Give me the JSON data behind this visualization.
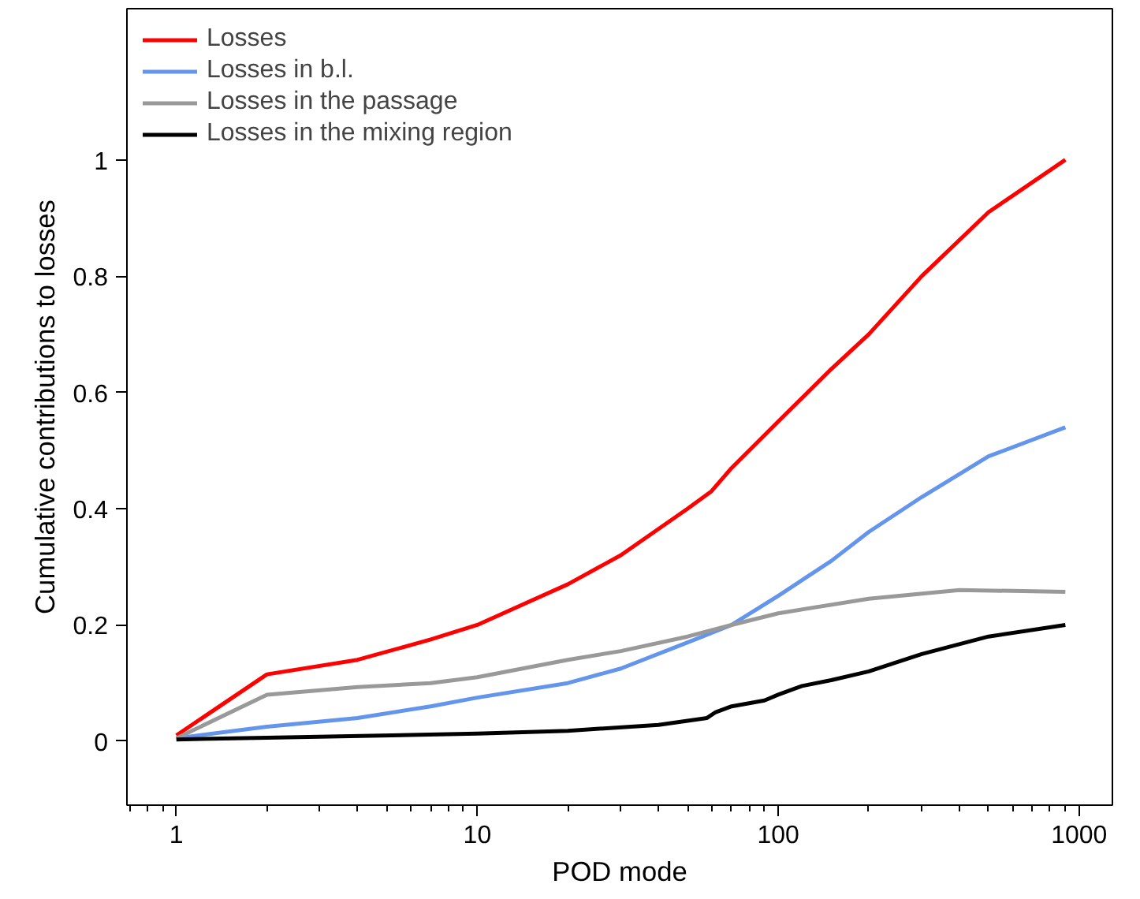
{
  "chart_data": {
    "type": "line",
    "xlabel": "POD mode",
    "ylabel": "Cumulative contributions to losses",
    "log": "x",
    "xlim": [
      0.685,
      1290
    ],
    "xticks": [
      1,
      10,
      100,
      1000
    ],
    "ylim": [
      -0.11,
      1.26
    ],
    "yticks": [
      0,
      0.2,
      0.4,
      0.6,
      0.8,
      1
    ],
    "grid": false,
    "legend": "top left",
    "line_style": "solid",
    "marker": "none",
    "series": [
      {
        "name": "Losses",
        "color": "#ff0000",
        "x": [
          1,
          2,
          4,
          7,
          10,
          20,
          30,
          50,
          60,
          70,
          100,
          150,
          200,
          300,
          500,
          900
        ],
        "values": [
          0.01,
          0.115,
          0.14,
          0.175,
          0.2,
          0.27,
          0.32,
          0.4,
          0.43,
          0.47,
          0.55,
          0.64,
          0.7,
          0.8,
          0.91,
          1.0
        ]
      },
      {
        "name": "Losses in b.l.",
        "color": "#6495ed",
        "x": [
          1,
          2,
          4,
          7,
          10,
          20,
          30,
          50,
          70,
          100,
          150,
          200,
          300,
          500,
          900
        ],
        "values": [
          0.005,
          0.025,
          0.04,
          0.06,
          0.075,
          0.1,
          0.125,
          0.17,
          0.2,
          0.25,
          0.31,
          0.36,
          0.42,
          0.49,
          0.54
        ]
      },
      {
        "name": "Losses in the passage",
        "color": "#999999",
        "x": [
          1,
          2,
          4,
          7,
          10,
          20,
          30,
          50,
          70,
          100,
          200,
          400,
          900
        ],
        "values": [
          0.005,
          0.08,
          0.093,
          0.1,
          0.11,
          0.14,
          0.155,
          0.18,
          0.2,
          0.22,
          0.245,
          0.26,
          0.257
        ]
      },
      {
        "name": "Losses in the mixing region",
        "color": "#000000",
        "x": [
          1,
          2,
          10,
          20,
          40,
          58,
          62,
          70,
          90,
          100,
          120,
          150,
          200,
          300,
          500,
          900
        ],
        "values": [
          0.003,
          0.006,
          0.013,
          0.018,
          0.028,
          0.04,
          0.05,
          0.06,
          0.07,
          0.08,
          0.095,
          0.105,
          0.12,
          0.15,
          0.18,
          0.2
        ]
      }
    ]
  }
}
